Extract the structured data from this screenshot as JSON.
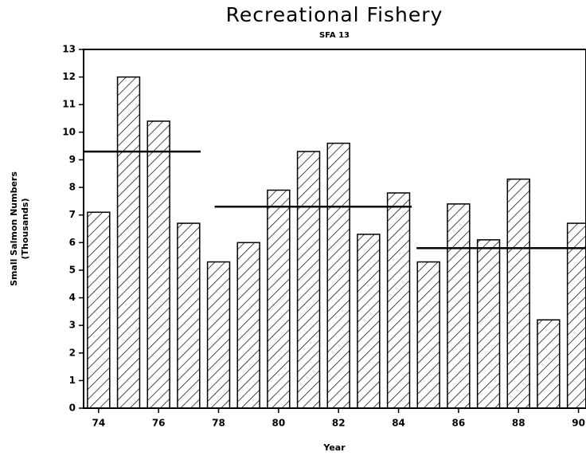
{
  "chart_data": {
    "type": "bar",
    "title": "Recreational Fishery",
    "subtitle": "SFA 13",
    "x_label": "Year",
    "y_label": [
      "Small Salmon Numbers",
      "(Thousands)"
    ],
    "x": [
      74,
      75,
      76,
      77,
      78,
      79,
      80,
      81,
      82,
      83,
      84,
      85,
      86,
      87,
      88,
      89,
      90
    ],
    "values": [
      7.1,
      12.0,
      10.4,
      6.7,
      5.3,
      6.0,
      7.9,
      9.3,
      9.6,
      6.3,
      7.8,
      5.3,
      7.4,
      6.1,
      8.3,
      3.2,
      6.7
    ],
    "color": "#000000",
    "xlim": [
      73.5,
      90.25
    ],
    "xticks": [
      74,
      76,
      78,
      80,
      82,
      84,
      86,
      88,
      90
    ],
    "ylim": [
      0,
      13
    ],
    "yticks": [
      0,
      1,
      2,
      3,
      4,
      5,
      6,
      7,
      8,
      9,
      10,
      11,
      12,
      13
    ],
    "reference_lines": [
      {
        "value": 9.3,
        "x": [
          73.5,
          77.4
        ]
      },
      {
        "value": 7.3,
        "x": [
          77.87,
          84.44
        ]
      },
      {
        "value": 5.8,
        "x": [
          84.6,
          90.25
        ]
      }
    ]
  }
}
